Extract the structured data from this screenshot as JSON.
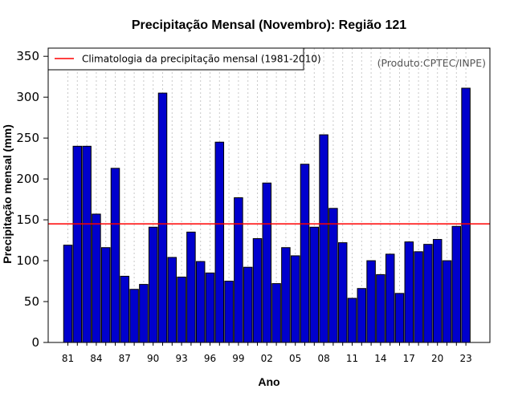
{
  "chart_data": {
    "type": "bar",
    "title": "Precipitação Mensal (Novembro): Região 121",
    "xlabel": "Ano",
    "ylabel": "Precipitação mensal (mm)",
    "ylim": [
      0,
      360
    ],
    "yticks": [
      0,
      50,
      100,
      150,
      200,
      250,
      300,
      350
    ],
    "categories": [
      "1981",
      "1982",
      "1983",
      "1984",
      "1985",
      "1986",
      "1987",
      "1988",
      "1989",
      "1990",
      "1991",
      "1992",
      "1993",
      "1994",
      "1995",
      "1996",
      "1997",
      "1998",
      "1999",
      "2000",
      "2001",
      "2002",
      "2003",
      "2004",
      "2005",
      "2006",
      "2007",
      "2008",
      "2009",
      "2010",
      "2011",
      "2012",
      "2013",
      "2014",
      "2015",
      "2016",
      "2017",
      "2018",
      "2019",
      "2020",
      "2021",
      "2022",
      "2023"
    ],
    "xtick_labels": [
      {
        "index": 0,
        "label": "81"
      },
      {
        "index": 3,
        "label": "84"
      },
      {
        "index": 6,
        "label": "87"
      },
      {
        "index": 9,
        "label": "90"
      },
      {
        "index": 12,
        "label": "93"
      },
      {
        "index": 15,
        "label": "96"
      },
      {
        "index": 18,
        "label": "99"
      },
      {
        "index": 21,
        "label": "02"
      },
      {
        "index": 24,
        "label": "05"
      },
      {
        "index": 27,
        "label": "08"
      },
      {
        "index": 30,
        "label": "11"
      },
      {
        "index": 33,
        "label": "14"
      },
      {
        "index": 36,
        "label": "17"
      },
      {
        "index": 39,
        "label": "20"
      },
      {
        "index": 42,
        "label": "23"
      }
    ],
    "values": [
      119,
      240,
      240,
      157,
      116,
      213,
      81,
      65,
      71,
      141,
      305,
      104,
      80,
      135,
      99,
      85,
      245,
      75,
      177,
      92,
      127,
      195,
      72,
      116,
      106,
      218,
      141,
      254,
      164,
      122,
      54,
      66,
      100,
      83,
      108,
      60,
      123,
      111,
      120,
      126,
      100,
      142,
      311
    ],
    "climatology": 145,
    "legend": {
      "label": "Climatologia da precipitação mensal (1981-2010)",
      "placement": "top-left"
    },
    "credit": "(Produto:CPTEC/INPE)",
    "colors": {
      "bar_fill": "#0000cd",
      "bar_stroke": "#000000",
      "climatology_line": "#ff0000",
      "grid": "#c8c8c8"
    }
  }
}
